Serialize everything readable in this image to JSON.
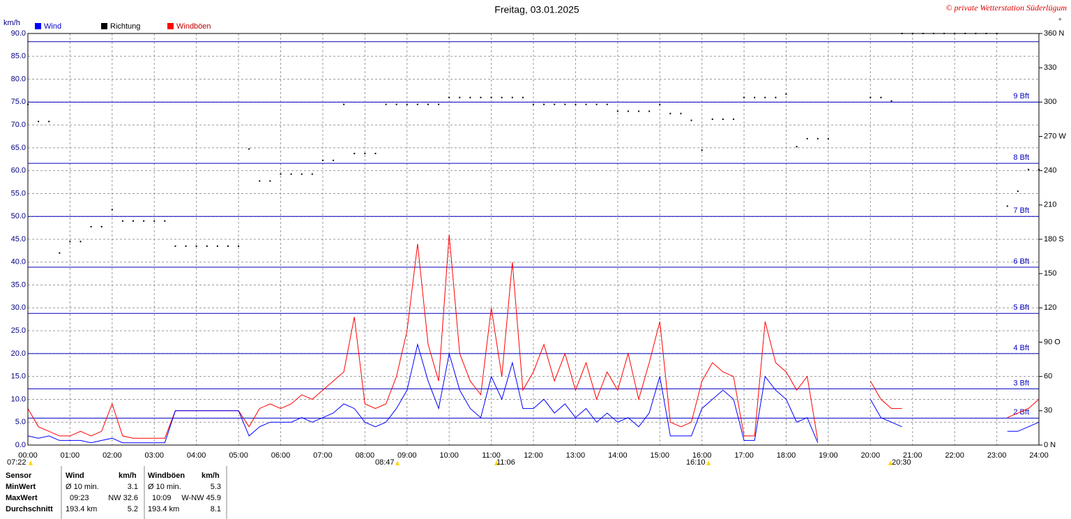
{
  "chart_data": {
    "type": "line",
    "title": "Freitag, 03.01.2025",
    "y_label": "km/h",
    "y2_label": "°",
    "x": [
      0,
      0.25,
      0.5,
      0.75,
      1,
      1.25,
      1.5,
      1.75,
      2,
      2.25,
      2.5,
      2.75,
      3,
      3.25,
      3.5,
      3.75,
      4,
      4.25,
      4.5,
      4.75,
      5,
      5.25,
      5.5,
      5.75,
      6,
      6.25,
      6.5,
      6.75,
      7,
      7.25,
      7.5,
      7.75,
      8,
      8.25,
      8.5,
      8.75,
      9,
      9.25,
      9.5,
      9.75,
      10,
      10.25,
      10.5,
      10.75,
      11,
      11.25,
      11.5,
      11.75,
      12,
      12.25,
      12.5,
      12.75,
      13,
      13.25,
      13.5,
      13.75,
      14,
      14.25,
      14.5,
      14.75,
      15,
      15.25,
      15.5,
      15.75,
      16,
      16.25,
      16.5,
      16.75,
      17,
      17.25,
      17.5,
      17.75,
      18,
      18.25,
      18.5,
      18.75,
      19,
      19.25,
      19.5,
      19.75,
      20,
      20.25,
      20.5,
      20.75,
      21,
      21.25,
      21.5,
      21.75,
      22,
      22.25,
      22.5,
      22.75,
      23,
      23.25,
      23.5,
      23.75,
      24
    ],
    "xlim": [
      0,
      24
    ],
    "xticks": [
      {
        "value": 0,
        "label": "00:00"
      },
      {
        "value": 1,
        "label": "01:00"
      },
      {
        "value": 2,
        "label": "02:00"
      },
      {
        "value": 3,
        "label": "03:00"
      },
      {
        "value": 4,
        "label": "04:00"
      },
      {
        "value": 5,
        "label": "05:00"
      },
      {
        "value": 6,
        "label": "06:00"
      },
      {
        "value": 7,
        "label": "07:00"
      },
      {
        "value": 8,
        "label": "08:00"
      },
      {
        "value": 9,
        "label": "09:00"
      },
      {
        "value": 10,
        "label": "10:00"
      },
      {
        "value": 11,
        "label": "11:00"
      },
      {
        "value": 12,
        "label": "12:00"
      },
      {
        "value": 13,
        "label": "13:00"
      },
      {
        "value": 14,
        "label": "14:00"
      },
      {
        "value": 15,
        "label": "15:00"
      },
      {
        "value": 16,
        "label": "16:00"
      },
      {
        "value": 17,
        "label": "17:00"
      },
      {
        "value": 18,
        "label": "18:00"
      },
      {
        "value": 19,
        "label": "19:00"
      },
      {
        "value": 20,
        "label": "20:00"
      },
      {
        "value": 21,
        "label": "21:00"
      },
      {
        "value": 22,
        "label": "22:00"
      },
      {
        "value": 23,
        "label": "23:00"
      },
      {
        "value": 24,
        "label": "24:00"
      }
    ],
    "ylim": [
      0,
      90
    ],
    "yticks": [
      {
        "value": 0,
        "label": "0.0"
      },
      {
        "value": 5,
        "label": "5.0"
      },
      {
        "value": 10,
        "label": "10.0"
      },
      {
        "value": 15,
        "label": "15.0"
      },
      {
        "value": 20,
        "label": "20.0"
      },
      {
        "value": 25,
        "label": "25.0"
      },
      {
        "value": 30,
        "label": "30.0"
      },
      {
        "value": 35,
        "label": "35.0"
      },
      {
        "value": 40,
        "label": "40.0"
      },
      {
        "value": 45,
        "label": "45.0"
      },
      {
        "value": 50,
        "label": "50.0"
      },
      {
        "value": 55,
        "label": "55.0"
      },
      {
        "value": 60,
        "label": "60.0"
      },
      {
        "value": 65,
        "label": "65.0"
      },
      {
        "value": 70,
        "label": "70.0"
      },
      {
        "value": 75,
        "label": "75.0"
      },
      {
        "value": 80,
        "label": "80.0"
      },
      {
        "value": 85,
        "label": "85.0"
      },
      {
        "value": 90,
        "label": "90.0"
      }
    ],
    "y2lim": [
      0,
      360
    ],
    "y2ticks": [
      {
        "value": 0,
        "label": "0 N"
      },
      30,
      60,
      {
        "value": 90,
        "label": "90 O"
      },
      120,
      150,
      {
        "value": 180,
        "label": "180 S"
      },
      210,
      240,
      {
        "value": 270,
        "label": "270 W"
      },
      300,
      330,
      {
        "value": 360,
        "label": "360 N"
      }
    ],
    "grid": true,
    "beaufort_lines": [
      {
        "value": 5.9,
        "label": "2 Bft"
      },
      {
        "value": 12.3,
        "label": "3 Bft"
      },
      {
        "value": 20,
        "label": "4 Bft"
      },
      {
        "value": 28.8,
        "label": "5 Bft"
      },
      {
        "value": 38.9,
        "label": "6 Bft"
      },
      {
        "value": 50,
        "label": "7 Bft"
      },
      {
        "value": 61.6,
        "label": "8 Bft"
      },
      {
        "value": 75,
        "label": "9 Bft"
      },
      {
        "value": 88.2
      }
    ],
    "series": [
      {
        "name": "Wind",
        "color": "#0000ff",
        "values": [
          2,
          1.5,
          2,
          1,
          1,
          1,
          0.5,
          1,
          1.5,
          0.5,
          0.5,
          0.5,
          0.5,
          0.5,
          7.5,
          7.5,
          7.5,
          7.5,
          7.5,
          7.5,
          7.5,
          2,
          4,
          5,
          5,
          5,
          6,
          5,
          6,
          7,
          9,
          8,
          5,
          4,
          5,
          8,
          12,
          22,
          14,
          8,
          20,
          12,
          8,
          6,
          15,
          10,
          18,
          8,
          8,
          10,
          7,
          9,
          6,
          8,
          5,
          7,
          5,
          6,
          4,
          7,
          15,
          2,
          2,
          2,
          8,
          10,
          12,
          10,
          1,
          1,
          15,
          12,
          10,
          5,
          6,
          0.5,
          null,
          null,
          null,
          null,
          10,
          6,
          5,
          4,
          null,
          null,
          null,
          null,
          null,
          null,
          null,
          null,
          null,
          3,
          3,
          4,
          5
        ]
      },
      {
        "name": "Richtung",
        "color": "#000000",
        "axis": "y2",
        "type": "scatter",
        "values": [
          298,
          283,
          283,
          168,
          178,
          178,
          191,
          191,
          206,
          196,
          196,
          196,
          196,
          196,
          174,
          174,
          174,
          174,
          174,
          174,
          174,
          259,
          231,
          231,
          237,
          237,
          237,
          237,
          249,
          249,
          298,
          255,
          255,
          255,
          298,
          298,
          298,
          298,
          298,
          298,
          304,
          304,
          304,
          304,
          304,
          304,
          304,
          304,
          298,
          298,
          298,
          298,
          298,
          298,
          298,
          298,
          292,
          292,
          292,
          292,
          298,
          290,
          290,
          284,
          258,
          285,
          285,
          285,
          304,
          304,
          304,
          304,
          307,
          261,
          268,
          268,
          268,
          null,
          null,
          null,
          304,
          304,
          301,
          360,
          360,
          360,
          360,
          360,
          360,
          360,
          360,
          360,
          360,
          209,
          222,
          241,
          241
        ]
      },
      {
        "name": "Windböen",
        "color": "#ff0000",
        "values": [
          8,
          4,
          3,
          2,
          2,
          3,
          2,
          3,
          9,
          2,
          1.5,
          1.5,
          1.5,
          1.5,
          7.5,
          7.5,
          7.5,
          7.5,
          7.5,
          7.5,
          7.5,
          4,
          8,
          9,
          8,
          9,
          11,
          10,
          12,
          14,
          16,
          28,
          9,
          8,
          9,
          15,
          25,
          44,
          22,
          14,
          46,
          20,
          14,
          11,
          30,
          15,
          40,
          12,
          16,
          22,
          14,
          20,
          12,
          18,
          10,
          16,
          12,
          20,
          10,
          18,
          27,
          5,
          4,
          5,
          14,
          18,
          16,
          15,
          2,
          2,
          27,
          18,
          16,
          12,
          15,
          1,
          null,
          null,
          null,
          null,
          14,
          10,
          8,
          8,
          null,
          null,
          null,
          null,
          null,
          null,
          null,
          null,
          null,
          6,
          7,
          8,
          10
        ]
      }
    ],
    "annotations": [
      "07:22",
      "08:47",
      "11:06",
      "16:10",
      "20:30"
    ]
  },
  "copyright": "© private Wetterstation Süderlügum",
  "table": {
    "header": [
      "Sensor",
      "Wind",
      "km/h",
      "Windböen",
      "km/h"
    ],
    "rows": [
      [
        "MinWert",
        "Ø 10 min.",
        "3.1",
        "Ø 10 min.",
        "5.3"
      ],
      [
        "MaxWert",
        "09:23",
        "NW 32.6",
        "10:09",
        "W-NW 45.9"
      ],
      [
        "Durchschnitt",
        "193.4 km",
        "5.2",
        "193.4 km",
        "8.1"
      ]
    ]
  }
}
